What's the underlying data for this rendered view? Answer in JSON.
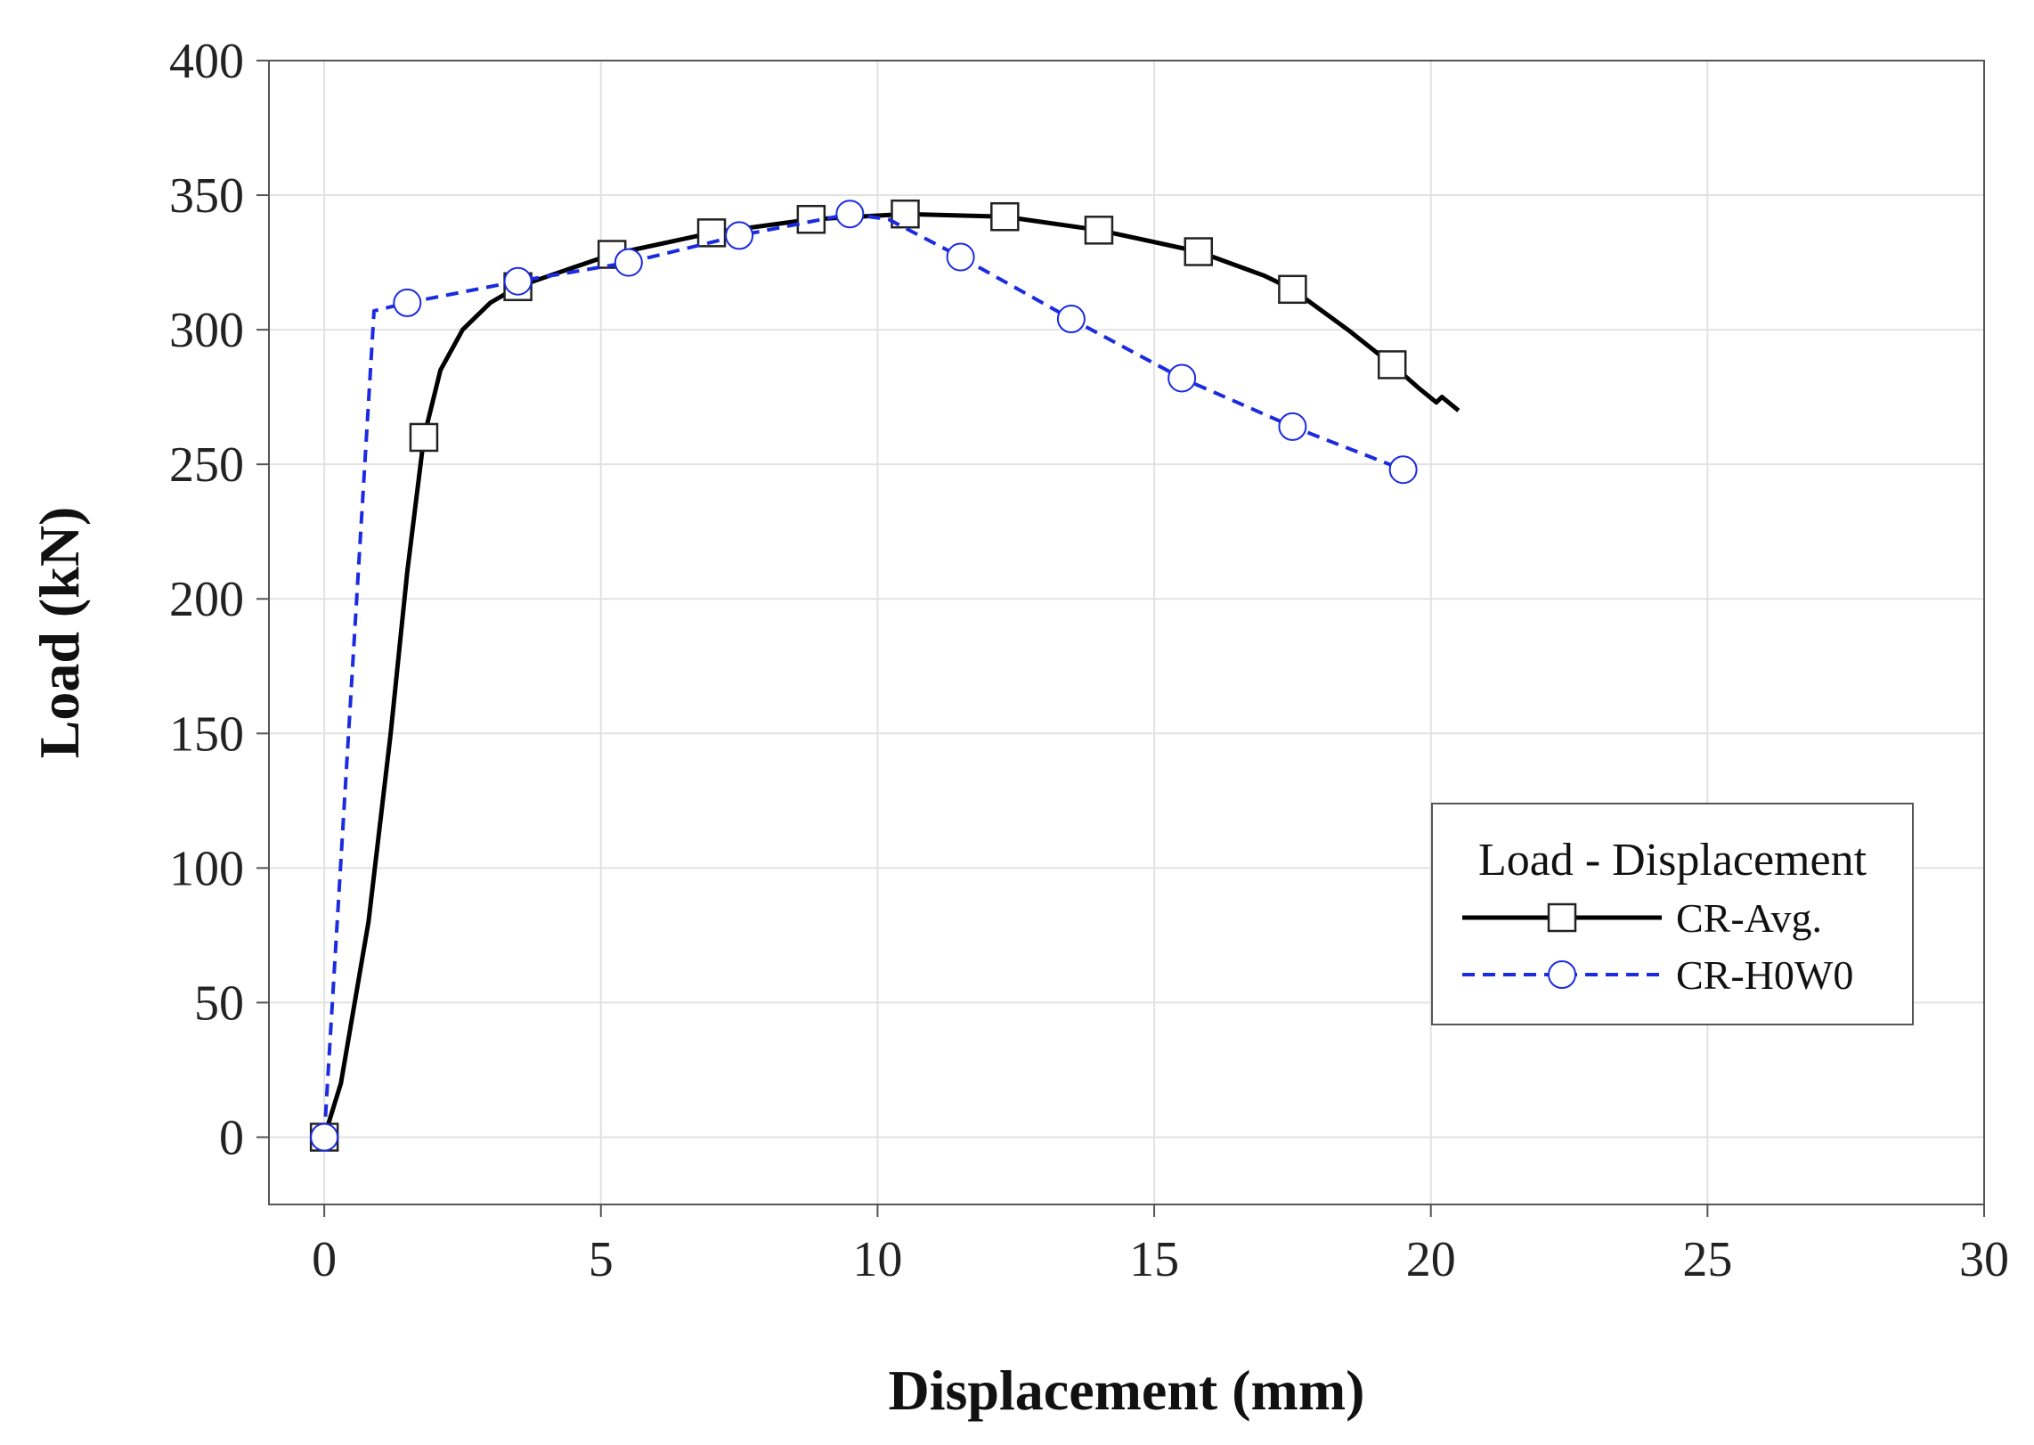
{
  "chart_data": {
    "type": "line",
    "title": "",
    "xlabel": "Displacement (mm)",
    "ylabel": "Load (kN)",
    "xlim": [
      -1,
      30
    ],
    "ylim": [
      -25,
      400
    ],
    "xticks": [
      0,
      5,
      10,
      15,
      20,
      25,
      30
    ],
    "yticks": [
      0,
      50,
      100,
      150,
      200,
      250,
      300,
      350,
      400
    ],
    "grid": true,
    "legend": {
      "title": "Load - Displacement",
      "position": "right"
    },
    "series": [
      {
        "name": "CR-Avg.",
        "color": "#000000",
        "line_style": "solid",
        "marker": "square",
        "curve": [
          [
            0,
            0
          ],
          [
            0.3,
            20
          ],
          [
            0.8,
            80
          ],
          [
            1.2,
            150
          ],
          [
            1.5,
            210
          ],
          [
            1.8,
            260
          ],
          [
            2.1,
            285
          ],
          [
            2.5,
            300
          ],
          [
            3,
            310
          ],
          [
            3.5,
            316
          ],
          [
            4.2,
            321
          ],
          [
            5.2,
            328
          ],
          [
            7,
            336
          ],
          [
            8.8,
            341
          ],
          [
            10.5,
            343
          ],
          [
            12.3,
            342
          ],
          [
            14,
            337
          ],
          [
            15.8,
            329
          ],
          [
            17,
            320
          ],
          [
            17.5,
            315
          ],
          [
            18.5,
            300
          ],
          [
            19.3,
            287
          ],
          [
            19.8,
            278
          ],
          [
            20.1,
            273
          ],
          [
            20.2,
            275
          ],
          [
            20.5,
            270
          ]
        ],
        "markers": [
          [
            0,
            0
          ],
          [
            1.8,
            260
          ],
          [
            3.5,
            316
          ],
          [
            5.2,
            328
          ],
          [
            7,
            336
          ],
          [
            8.8,
            341
          ],
          [
            10.5,
            343
          ],
          [
            12.3,
            342
          ],
          [
            14,
            337
          ],
          [
            15.8,
            329
          ],
          [
            17.5,
            315
          ],
          [
            19.3,
            287
          ]
        ]
      },
      {
        "name": "CR-H0W0",
        "color": "#1a2be0",
        "line_style": "dashed",
        "marker": "circle",
        "curve": [
          [
            0,
            0
          ],
          [
            0.9,
            307
          ],
          [
            1.5,
            310
          ],
          [
            3.5,
            318
          ],
          [
            5.5,
            325
          ],
          [
            7.5,
            335
          ],
          [
            9.5,
            343
          ],
          [
            10.2,
            341
          ],
          [
            11.5,
            327
          ],
          [
            13.5,
            304
          ],
          [
            15.5,
            282
          ],
          [
            17.5,
            264
          ],
          [
            19.5,
            248
          ]
        ],
        "markers": [
          [
            0,
            0
          ],
          [
            1.5,
            310
          ],
          [
            3.5,
            318
          ],
          [
            5.5,
            325
          ],
          [
            7.5,
            335
          ],
          [
            9.5,
            343
          ],
          [
            11.5,
            327
          ],
          [
            13.5,
            304
          ],
          [
            15.5,
            282
          ],
          [
            17.5,
            264
          ],
          [
            19.5,
            248
          ]
        ]
      }
    ]
  }
}
